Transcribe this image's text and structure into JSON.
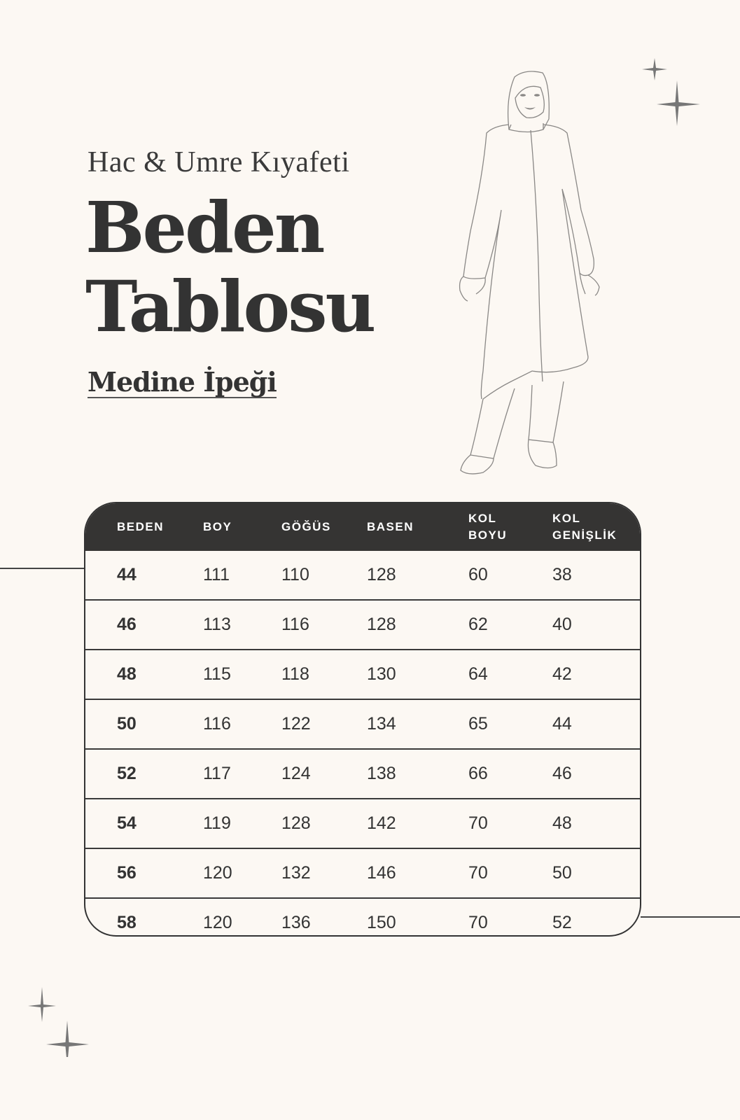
{
  "header": {
    "subtitle": "Hac & Umre Kıyafeti",
    "title_line1": "Beden",
    "title_line2": "Tablosu",
    "product": "Medine İpeği"
  },
  "illustration": {
    "icon": "woman-in-hijab-outline-figure",
    "sparkle_icon": "four-point-star"
  },
  "colors": {
    "background": "#fcf8f3",
    "header_bg": "#353433",
    "text": "#333333"
  },
  "table": {
    "columns": [
      [
        "BEDEN"
      ],
      [
        "BOY"
      ],
      [
        "GÖĞÜS"
      ],
      [
        "BASEN"
      ],
      [
        "KOL",
        "BOYU"
      ],
      [
        "KOL",
        "GENİŞLİK"
      ]
    ],
    "rows": [
      [
        "44",
        "111",
        "110",
        "128",
        "60",
        "38"
      ],
      [
        "46",
        "113",
        "116",
        "128",
        "62",
        "40"
      ],
      [
        "48",
        "115",
        "118",
        "130",
        "64",
        "42"
      ],
      [
        "50",
        "116",
        "122",
        "134",
        "65",
        "44"
      ],
      [
        "52",
        "117",
        "124",
        "138",
        "66",
        "46"
      ],
      [
        "54",
        "119",
        "128",
        "142",
        "70",
        "48"
      ],
      [
        "56",
        "120",
        "132",
        "146",
        "70",
        "50"
      ],
      [
        "58",
        "120",
        "136",
        "150",
        "70",
        "52"
      ]
    ]
  }
}
